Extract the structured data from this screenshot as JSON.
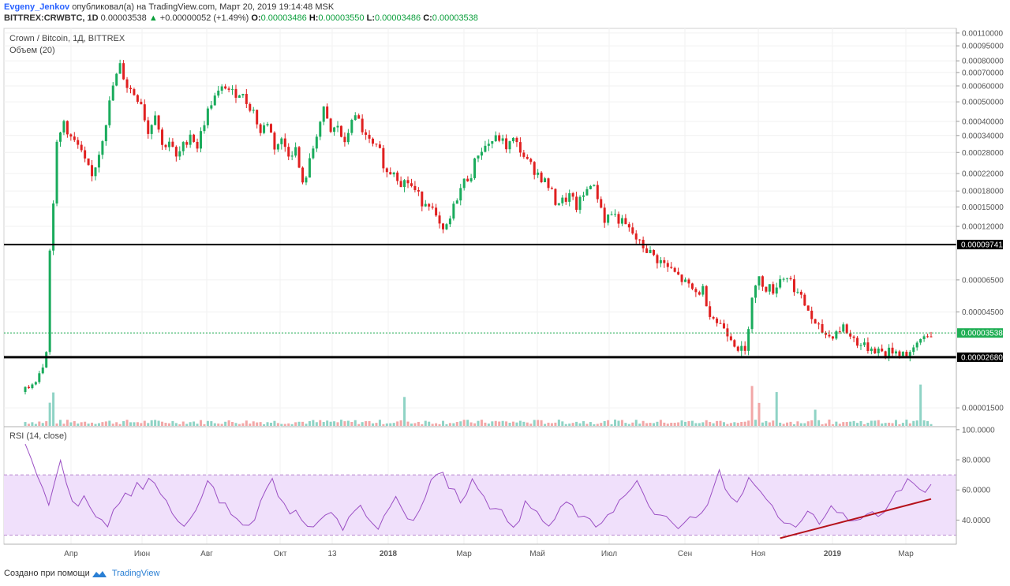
{
  "header": {
    "author": "Evgeny_Jenkov",
    "published_text": "опубликовал(а) на TradingView.com, Март 20, 2019 19:14:48 MSK",
    "symbol": "BITTREX:CRWBTC, 1D",
    "last": "0.00003538",
    "change": "+0.00000052 (+1.49%)",
    "o_label": "O:",
    "o": "0.00003486",
    "h_label": "H:",
    "h": "0.00003550",
    "l_label": "L:",
    "l": "0.00003486",
    "c_label": "C:",
    "c": "0.00003538"
  },
  "price_pane": {
    "title": "Crown / Bitcoin, 1Д, BITTREX",
    "volume_label": "Объем (20)"
  },
  "rsi_pane": {
    "title": "RSI (14, close)"
  },
  "footer": {
    "created_with": "Создано при помощи",
    "brand": "TradingView"
  },
  "colors": {
    "up": "#1aab5c",
    "down": "#e02020",
    "rsi_line": "#9b4fc4",
    "rsi_band": "#f0e0fb",
    "trendline": "#b5121b",
    "last_price_badge": "#1fae54",
    "level_badge": "#000000"
  },
  "chart_data": [
    {
      "type": "candlestick",
      "scale": "log",
      "y_ticks": [
        "0.00110000",
        "0.00095000",
        "0.00080000",
        "0.00070000",
        "0.00060000",
        "0.00050000",
        "0.00040000",
        "0.00034000",
        "0.00028000",
        "0.00022000",
        "0.00018000",
        "0.00015000",
        "0.00012000",
        "0.00009741",
        "0.00006500",
        "0.00004500",
        "0.00003538",
        "0.00002680",
        "0.00001500"
      ],
      "y_tick_values": [
        0.0011,
        0.00095,
        0.0008,
        0.0007,
        0.0006,
        0.0005,
        0.0004,
        0.00034,
        0.00028,
        0.00022,
        0.00018,
        0.00015,
        0.00012,
        9.741e-05,
        6.5e-05,
        4.5e-05,
        3.538e-05,
        2.68e-05,
        1.5e-05
      ],
      "x_ticks": [
        "Апр",
        "Июн",
        "Авг",
        "Окт",
        "13",
        "2018",
        "Мар",
        "Май",
        "Июл",
        "Сен",
        "Ноя",
        "2019",
        "Мар"
      ],
      "horizontal_levels": [
        9.741e-05,
        2.68e-05
      ],
      "last_price": 3.538e-05,
      "path_points": [
        [
          0,
          1.8e-05
        ],
        [
          3,
          2.1e-05
        ],
        [
          5,
          2.5e-05
        ],
        [
          6,
          3e-05
        ],
        [
          7,
          9e-05
        ],
        [
          9,
          0.0003
        ],
        [
          11,
          0.0004
        ],
        [
          13,
          0.00033
        ],
        [
          15,
          0.0003
        ],
        [
          17,
          0.00025
        ],
        [
          19,
          0.00021
        ],
        [
          21,
          0.00028
        ],
        [
          23,
          0.0004
        ],
        [
          25,
          0.0006
        ],
        [
          27,
          0.00075
        ],
        [
          29,
          0.0006
        ],
        [
          31,
          0.00055
        ],
        [
          33,
          0.0005
        ],
        [
          35,
          0.00035
        ],
        [
          37,
          0.00045
        ],
        [
          39,
          0.0003
        ],
        [
          41,
          0.00032
        ],
        [
          43,
          0.00026
        ],
        [
          45,
          0.0003
        ],
        [
          47,
          0.00035
        ],
        [
          49,
          0.0003
        ],
        [
          51,
          0.0004
        ],
        [
          53,
          0.0005
        ],
        [
          55,
          0.00055
        ],
        [
          57,
          0.0006
        ],
        [
          59,
          0.00055
        ],
        [
          61,
          0.00056
        ],
        [
          63,
          0.0005
        ],
        [
          65,
          0.00045
        ],
        [
          67,
          0.00035
        ],
        [
          69,
          0.0004
        ],
        [
          71,
          0.0003
        ],
        [
          73,
          0.00032
        ],
        [
          75,
          0.00028
        ],
        [
          77,
          0.00029
        ],
        [
          79,
          0.00019
        ],
        [
          81,
          0.00025
        ],
        [
          83,
          0.00035
        ],
        [
          85,
          0.00045
        ],
        [
          87,
          0.00035
        ],
        [
          89,
          0.00038
        ],
        [
          91,
          0.0003
        ],
        [
          93,
          0.00042
        ],
        [
          95,
          0.0004
        ],
        [
          97,
          0.00033
        ],
        [
          99,
          0.0003
        ],
        [
          101,
          0.00028
        ],
        [
          103,
          0.00022
        ],
        [
          105,
          0.00023
        ],
        [
          107,
          0.0002
        ],
        [
          109,
          0.0002
        ],
        [
          111,
          0.00018
        ],
        [
          113,
          0.00016
        ],
        [
          115,
          0.00016
        ],
        [
          117,
          0.00013
        ],
        [
          119,
          0.00011
        ],
        [
          121,
          0.00013
        ],
        [
          123,
          0.00017
        ],
        [
          125,
          0.0002
        ],
        [
          127,
          0.00022
        ],
        [
          129,
          0.00028
        ],
        [
          131,
          0.0003
        ],
        [
          133,
          0.00032
        ],
        [
          135,
          0.00033
        ],
        [
          137,
          0.0003
        ],
        [
          139,
          0.00032
        ],
        [
          141,
          0.00029
        ],
        [
          143,
          0.00025
        ],
        [
          145,
          0.00023
        ],
        [
          147,
          0.00021
        ],
        [
          149,
          0.00019
        ],
        [
          151,
          0.00016
        ],
        [
          153,
          0.00016
        ],
        [
          155,
          0.00017
        ],
        [
          157,
          0.00015
        ],
        [
          159,
          0.00017
        ],
        [
          161,
          0.0002
        ],
        [
          163,
          0.00017
        ],
        [
          165,
          0.00013
        ],
        [
          167,
          0.00014
        ],
        [
          169,
          0.00013
        ],
        [
          171,
          0.00012
        ],
        [
          173,
          0.00011
        ],
        [
          175,
          9.8e-05
        ],
        [
          177,
          9.2e-05
        ],
        [
          179,
          8.5e-05
        ],
        [
          181,
          8e-05
        ],
        [
          183,
          7.5e-05
        ],
        [
          185,
          7e-05
        ],
        [
          187,
          6.5e-05
        ],
        [
          189,
          6e-05
        ],
        [
          191,
          5.6e-05
        ],
        [
          193,
          5.8e-05
        ],
        [
          195,
          4.5e-05
        ],
        [
          197,
          4e-05
        ],
        [
          199,
          3.8e-05
        ],
        [
          201,
          3.4e-05
        ],
        [
          203,
          3e-05
        ],
        [
          205,
          2.8e-05
        ],
        [
          207,
          5.5e-05
        ],
        [
          209,
          6.5e-05
        ],
        [
          211,
          6e-05
        ],
        [
          213,
          5.8e-05
        ],
        [
          215,
          6.6e-05
        ],
        [
          217,
          6.8e-05
        ],
        [
          219,
          6e-05
        ],
        [
          221,
          5.2e-05
        ],
        [
          223,
          4.6e-05
        ],
        [
          225,
          3.8e-05
        ],
        [
          227,
          3.6e-05
        ],
        [
          229,
          3.4e-05
        ],
        [
          231,
          3.6e-05
        ],
        [
          233,
          3.8e-05
        ],
        [
          235,
          3.4e-05
        ],
        [
          237,
          3.2e-05
        ],
        [
          239,
          3e-05
        ],
        [
          241,
          3e-05
        ],
        [
          243,
          2.9e-05
        ],
        [
          245,
          2.8e-05
        ],
        [
          247,
          2.9e-05
        ],
        [
          249,
          2.85e-05
        ],
        [
          251,
          2.8e-05
        ],
        [
          253,
          2.85e-05
        ],
        [
          255,
          3.3e-05
        ],
        [
          257,
          3.5e-05
        ],
        [
          258,
          3.538e-05
        ]
      ]
    },
    {
      "type": "line",
      "name": "RSI (14, close)",
      "y_ticks": [
        "100.0000",
        "80.0000",
        "60.0000",
        "40.0000"
      ],
      "y_tick_values": [
        100,
        80,
        60,
        40
      ],
      "band": [
        30,
        70
      ],
      "values": [
        90,
        78,
        70,
        58,
        52,
        64,
        78,
        62,
        54,
        50,
        56,
        48,
        44,
        40,
        38,
        46,
        52,
        60,
        58,
        66,
        62,
        70,
        62,
        56,
        50,
        44,
        42,
        38,
        40,
        46,
        58,
        66,
        60,
        54,
        50,
        46,
        40,
        36,
        34,
        42,
        52,
        60,
        70,
        58,
        50,
        42,
        46,
        40,
        34,
        36,
        40,
        44,
        48,
        38,
        36,
        40,
        46,
        52,
        44,
        38,
        36,
        42,
        50,
        56,
        48,
        42,
        40,
        48,
        58,
        66,
        72,
        70,
        62,
        58,
        54,
        60,
        66,
        62,
        58,
        50,
        46,
        44,
        40,
        38,
        42,
        50,
        48,
        44,
        40,
        36,
        40,
        46,
        52,
        48,
        44,
        40,
        38,
        36,
        40,
        44,
        48,
        52,
        56,
        60,
        64,
        56,
        50,
        46,
        42,
        40,
        36,
        34,
        38,
        42,
        40,
        44,
        50,
        60,
        72,
        62,
        58,
        54,
        60,
        66,
        64,
        58,
        52,
        48,
        44,
        40,
        36,
        38,
        40,
        44,
        42,
        40,
        44,
        48,
        46,
        44,
        40,
        38,
        42,
        46,
        44,
        42,
        46,
        50,
        56,
        60,
        70,
        62,
        58,
        60,
        62
      ],
      "trendline": [
        [
          215,
          28
        ],
        [
          258,
          54
        ]
      ]
    }
  ]
}
